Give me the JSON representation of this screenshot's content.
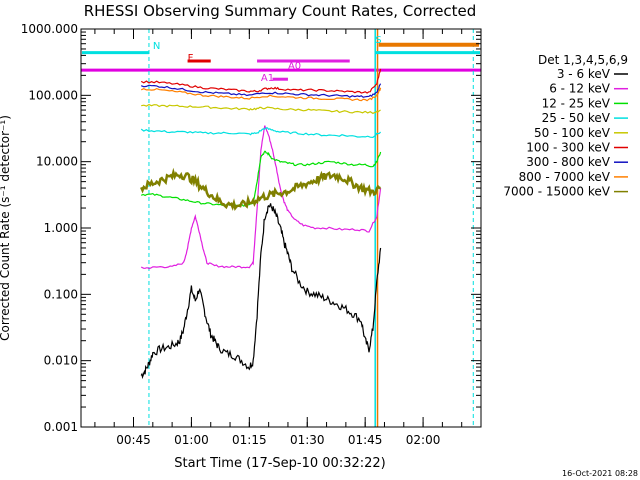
{
  "chart_data": {
    "type": "line",
    "title": "RHESSI Observing Summary Count Rates, Corrected",
    "xlabel": "Start Time (17-Sep-10 00:32:22)",
    "ylabel": "Corrected Count Rate (s⁻¹ detector⁻¹)",
    "yscale": "log",
    "ylim": [
      0.001,
      1000
    ],
    "xlim_minutes": [
      32.4,
      136
    ],
    "x_unit": "minutes after 00:00 UT",
    "y_ticks": [
      {
        "v": 0.001,
        "label": "0.001"
      },
      {
        "v": 0.01,
        "label": "0.010"
      },
      {
        "v": 0.1,
        "label": "0.100"
      },
      {
        "v": 1,
        "label": "1.000"
      },
      {
        "v": 10,
        "label": "10.000"
      },
      {
        "v": 100,
        "label": "100.000"
      },
      {
        "v": 1000,
        "label": "1000.000"
      }
    ],
    "x_ticks": [
      {
        "v": 46,
        "label": "00:45"
      },
      {
        "v": 61,
        "label": "01:00"
      },
      {
        "v": 76,
        "label": "01:15"
      },
      {
        "v": 91,
        "label": "01:30"
      },
      {
        "v": 106,
        "label": "01:45"
      },
      {
        "v": 121,
        "label": "02:00"
      }
    ],
    "legend_title": "Det 1,3,4,5,6,9",
    "legend_placement": "right",
    "series": [
      {
        "name": "3 - 6 keV",
        "color": "#000000",
        "points": [
          [
            48,
            0.006
          ],
          [
            49,
            0.007
          ],
          [
            50,
            0.009
          ],
          [
            51,
            0.013
          ],
          [
            53,
            0.015
          ],
          [
            55,
            0.016
          ],
          [
            57,
            0.018
          ],
          [
            58,
            0.02
          ],
          [
            59,
            0.03
          ],
          [
            60,
            0.06
          ],
          [
            61,
            0.12
          ],
          [
            62,
            0.08
          ],
          [
            63,
            0.12
          ],
          [
            64,
            0.07
          ],
          [
            65,
            0.04
          ],
          [
            66,
            0.025
          ],
          [
            67,
            0.02
          ],
          [
            68,
            0.016
          ],
          [
            70,
            0.013
          ],
          [
            72,
            0.012
          ],
          [
            74,
            0.01
          ],
          [
            76,
            0.008
          ],
          [
            77,
            0.01
          ],
          [
            78,
            0.05
          ],
          [
            79,
            0.4
          ],
          [
            80,
            1.5
          ],
          [
            81,
            2.2
          ],
          [
            82,
            2.0
          ],
          [
            83,
            1.5
          ],
          [
            84,
            1.0
          ],
          [
            85,
            0.6
          ],
          [
            86,
            0.4
          ],
          [
            87,
            0.25
          ],
          [
            89,
            0.15
          ],
          [
            91,
            0.11
          ],
          [
            93,
            0.1
          ],
          [
            95,
            0.09
          ],
          [
            97,
            0.08
          ],
          [
            99,
            0.07
          ],
          [
            101,
            0.06
          ],
          [
            103,
            0.05
          ],
          [
            105,
            0.04
          ],
          [
            106,
            0.02
          ],
          [
            107,
            0.015
          ],
          [
            108,
            0.03
          ],
          [
            109,
            0.15
          ],
          [
            110,
            0.5
          ]
        ]
      },
      {
        "name": "6 - 12 keV",
        "color": "#e020e0",
        "points": [
          [
            48,
            0.25
          ],
          [
            50,
            0.25
          ],
          [
            53,
            0.26
          ],
          [
            56,
            0.26
          ],
          [
            59,
            0.3
          ],
          [
            60,
            0.5
          ],
          [
            61,
            1.0
          ],
          [
            62,
            1.5
          ],
          [
            63,
            0.9
          ],
          [
            64,
            0.5
          ],
          [
            65,
            0.3
          ],
          [
            67,
            0.27
          ],
          [
            70,
            0.26
          ],
          [
            73,
            0.26
          ],
          [
            76,
            0.26
          ],
          [
            77,
            0.3
          ],
          [
            78,
            2.0
          ],
          [
            79,
            15
          ],
          [
            80,
            35
          ],
          [
            81,
            25
          ],
          [
            82,
            15
          ],
          [
            83,
            8
          ],
          [
            84,
            4
          ],
          [
            85,
            2.5
          ],
          [
            86,
            1.8
          ],
          [
            88,
            1.3
          ],
          [
            90,
            1.1
          ],
          [
            93,
            1.0
          ],
          [
            96,
            1.0
          ],
          [
            100,
            0.95
          ],
          [
            104,
            0.95
          ],
          [
            107,
            0.9
          ],
          [
            109,
            1.5
          ],
          [
            110,
            4
          ]
        ]
      },
      {
        "name": "12 - 25 keV",
        "color": "#00e000",
        "points": [
          [
            48,
            3.2
          ],
          [
            51,
            3.2
          ],
          [
            54,
            3.0
          ],
          [
            57,
            2.8
          ],
          [
            60,
            2.6
          ],
          [
            63,
            2.4
          ],
          [
            66,
            2.3
          ],
          [
            69,
            2.2
          ],
          [
            72,
            2.2
          ],
          [
            75,
            2.2
          ],
          [
            77,
            2.4
          ],
          [
            78,
            5
          ],
          [
            79,
            12
          ],
          [
            80,
            14
          ],
          [
            81,
            13
          ],
          [
            82,
            11
          ],
          [
            84,
            10
          ],
          [
            86,
            9.5
          ],
          [
            88,
            9
          ],
          [
            91,
            9
          ],
          [
            94,
            9.5
          ],
          [
            97,
            10
          ],
          [
            100,
            9.5
          ],
          [
            103,
            9
          ],
          [
            106,
            9
          ],
          [
            108,
            8.5
          ],
          [
            109,
            10
          ],
          [
            110,
            14
          ]
        ]
      },
      {
        "name": "25 - 50 keV",
        "color": "#00e0e0",
        "points": [
          [
            48,
            30
          ],
          [
            52,
            29
          ],
          [
            56,
            28
          ],
          [
            60,
            28
          ],
          [
            64,
            27
          ],
          [
            68,
            27
          ],
          [
            72,
            27
          ],
          [
            76,
            26
          ],
          [
            78,
            27
          ],
          [
            80,
            32
          ],
          [
            82,
            30
          ],
          [
            84,
            28
          ],
          [
            88,
            27
          ],
          [
            92,
            26
          ],
          [
            96,
            25
          ],
          [
            100,
            25
          ],
          [
            104,
            24
          ],
          [
            108,
            24
          ],
          [
            110,
            28
          ]
        ]
      },
      {
        "name": "50 - 100 keV",
        "color": "#c8c800",
        "points": [
          [
            48,
            70
          ],
          [
            52,
            70
          ],
          [
            56,
            69
          ],
          [
            60,
            68
          ],
          [
            64,
            67
          ],
          [
            68,
            65
          ],
          [
            72,
            63
          ],
          [
            76,
            62
          ],
          [
            78,
            63
          ],
          [
            80,
            65
          ],
          [
            84,
            62
          ],
          [
            88,
            61
          ],
          [
            92,
            60
          ],
          [
            96,
            58
          ],
          [
            100,
            57
          ],
          [
            104,
            56
          ],
          [
            108,
            55
          ],
          [
            110,
            60
          ]
        ]
      },
      {
        "name": "100 - 300 keV",
        "color": "#e00000",
        "points": [
          [
            48,
            160
          ],
          [
            52,
            158
          ],
          [
            56,
            150
          ],
          [
            60,
            140
          ],
          [
            64,
            130
          ],
          [
            68,
            125
          ],
          [
            72,
            120
          ],
          [
            76,
            115
          ],
          [
            78,
            115
          ],
          [
            80,
            125
          ],
          [
            82,
            130
          ],
          [
            84,
            125
          ],
          [
            88,
            120
          ],
          [
            92,
            120
          ],
          [
            96,
            118
          ],
          [
            100,
            115
          ],
          [
            104,
            112
          ],
          [
            107,
            110
          ],
          [
            109,
            150
          ],
          [
            110,
            250
          ]
        ]
      },
      {
        "name": "300 - 800 keV",
        "color": "#1010c0",
        "points": [
          [
            48,
            140
          ],
          [
            52,
            138
          ],
          [
            56,
            130
          ],
          [
            60,
            120
          ],
          [
            64,
            112
          ],
          [
            68,
            108
          ],
          [
            72,
            104
          ],
          [
            76,
            100
          ],
          [
            80,
            110
          ],
          [
            84,
            108
          ],
          [
            88,
            104
          ],
          [
            92,
            102
          ],
          [
            96,
            100
          ],
          [
            100,
            98
          ],
          [
            104,
            96
          ],
          [
            107,
            95
          ],
          [
            109,
            110
          ],
          [
            110,
            150
          ]
        ]
      },
      {
        "name": "800 - 7000 keV",
        "color": "#ff8000",
        "points": [
          [
            48,
            125
          ],
          [
            52,
            122
          ],
          [
            56,
            115
          ],
          [
            60,
            108
          ],
          [
            64,
            100
          ],
          [
            68,
            97
          ],
          [
            72,
            93
          ],
          [
            76,
            90
          ],
          [
            80,
            98
          ],
          [
            84,
            96
          ],
          [
            88,
            93
          ],
          [
            92,
            91
          ],
          [
            96,
            89
          ],
          [
            100,
            88
          ],
          [
            104,
            86
          ],
          [
            107,
            85
          ],
          [
            109,
            100
          ],
          [
            110,
            130
          ]
        ]
      },
      {
        "name": "7000 - 15000 keV",
        "color": "#808000",
        "points": [
          [
            48,
            4.0
          ],
          [
            50,
            4.5
          ],
          [
            52,
            5.0
          ],
          [
            54,
            5.5
          ],
          [
            56,
            6.0
          ],
          [
            58,
            6.5
          ],
          [
            60,
            6.0
          ],
          [
            62,
            5.0
          ],
          [
            64,
            4.0
          ],
          [
            66,
            3.2
          ],
          [
            68,
            2.6
          ],
          [
            70,
            2.3
          ],
          [
            72,
            2.2
          ],
          [
            74,
            2.2
          ],
          [
            76,
            2.4
          ],
          [
            78,
            2.7
          ],
          [
            80,
            3.0
          ],
          [
            82,
            3.2
          ],
          [
            84,
            3.4
          ],
          [
            86,
            3.6
          ],
          [
            88,
            4.0
          ],
          [
            90,
            4.5
          ],
          [
            92,
            5.0
          ],
          [
            94,
            5.5
          ],
          [
            96,
            6.0
          ],
          [
            98,
            6.2
          ],
          [
            100,
            5.8
          ],
          [
            102,
            5.0
          ],
          [
            104,
            4.3
          ],
          [
            106,
            3.8
          ],
          [
            108,
            3.5
          ],
          [
            110,
            4
          ]
        ]
      }
    ],
    "annotations": [
      {
        "label": "N",
        "color": "#00e0e0",
        "x": 51,
        "y": 500,
        "bar": [
          32.4,
          50
        ],
        "bar_y": 440
      },
      {
        "label": "S",
        "color": "#00e0e0",
        "x": 108.6,
        "y": 620,
        "bar": [
          108.6,
          136
        ],
        "bar_y": 440
      },
      {
        "label": "F",
        "color": "#e00000",
        "x": 60,
        "y": 330,
        "bar": [
          60,
          66
        ],
        "bar_y": 330
      },
      {
        "label": "A0",
        "color": "#e020e0",
        "x": 86,
        "y": 250,
        "bar": [
          78,
          102
        ],
        "bar_y": 330
      },
      {
        "label": "A1",
        "color": "#e020e0",
        "x": 79,
        "y": 165,
        "bar": [
          82,
          86
        ],
        "bar_y": 175
      }
    ],
    "orange_bar": {
      "color": "#e87800",
      "bar": [
        109.5,
        136
      ],
      "bar_y": 580
    },
    "attenuator_line": {
      "color": "#e000e0",
      "y": 240
    },
    "vlines_cyan_dashed": [
      50,
      134
    ],
    "vlines_cyan_solid": [
      108.6
    ],
    "vline_orange": 109.2
  },
  "footer": {
    "timestamp": "16-Oct-2021 08:28"
  }
}
